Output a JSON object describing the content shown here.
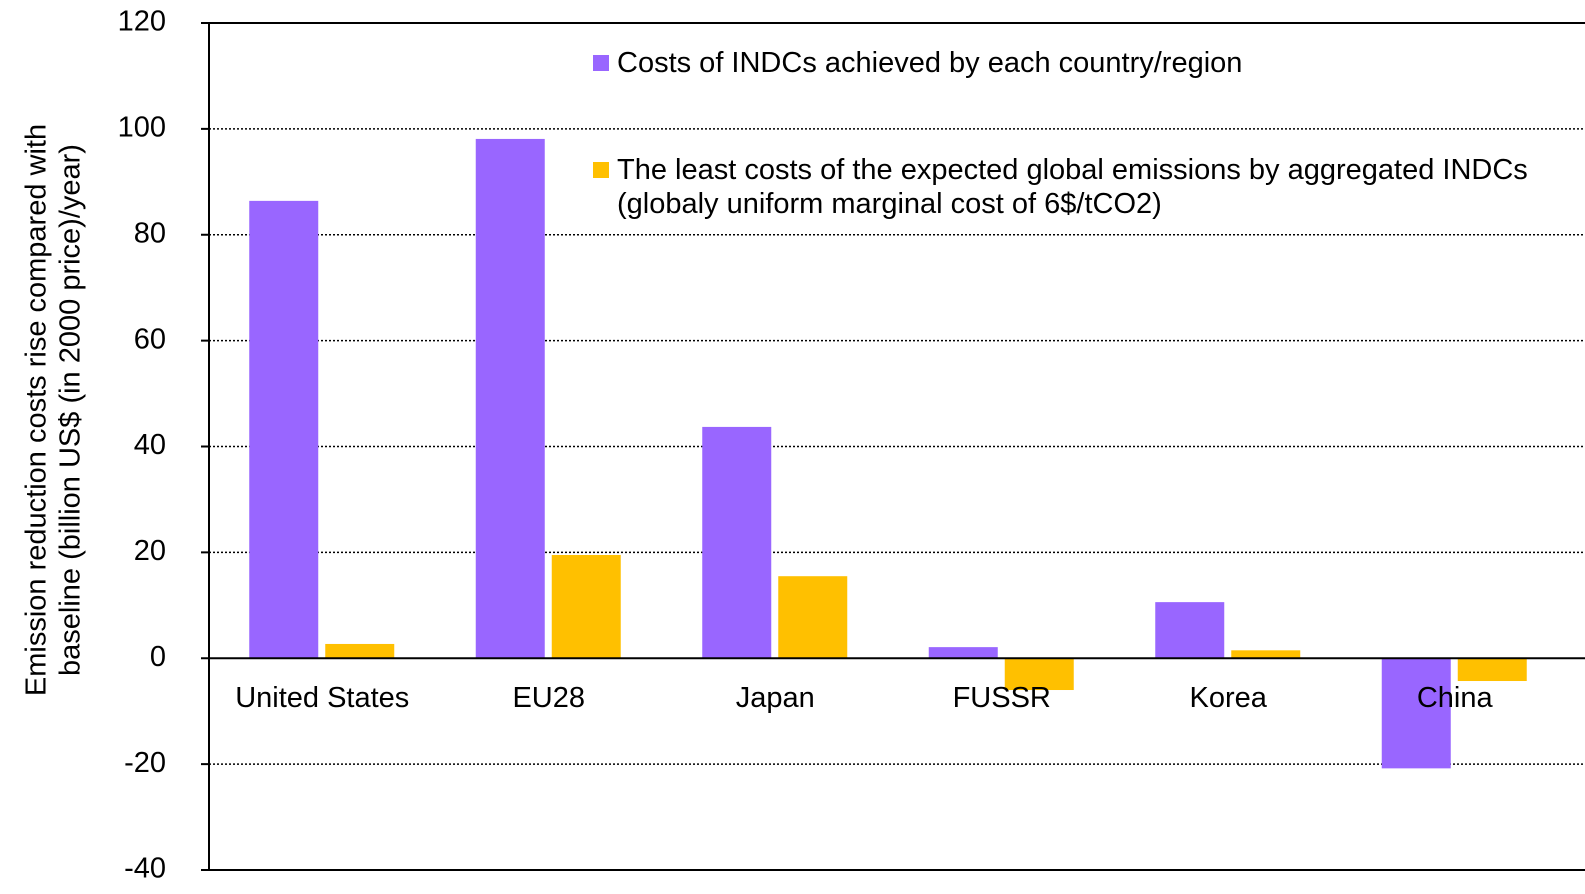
{
  "chart_data": {
    "type": "bar",
    "ylabel": [
      "Emission reduction costs rise compared with",
      "baseline (billion US$ (in 2000 price)/year)"
    ],
    "categories": [
      "United States",
      "EU28",
      "Japan",
      "FUSSR",
      "Korea",
      "China"
    ],
    "series": [
      {
        "name": "Costs of INDCs achieved by each country/region",
        "color": "#9966ff",
        "values": [
          86.4,
          98.1,
          43.7,
          2.1,
          10.6,
          -20.8
        ]
      },
      {
        "name": "The least costs of the expected global emissions by aggregated INDCs (globaly uniform marginal cost of 6$/tCO2)",
        "color": "#ffc000",
        "values": [
          2.7,
          19.5,
          15.5,
          -6,
          1.5,
          -4.3
        ]
      }
    ],
    "ylim": [
      -40,
      120
    ],
    "yticks": [
      -40,
      -20,
      0,
      20,
      40,
      60,
      80,
      100,
      120
    ],
    "grid": true
  }
}
